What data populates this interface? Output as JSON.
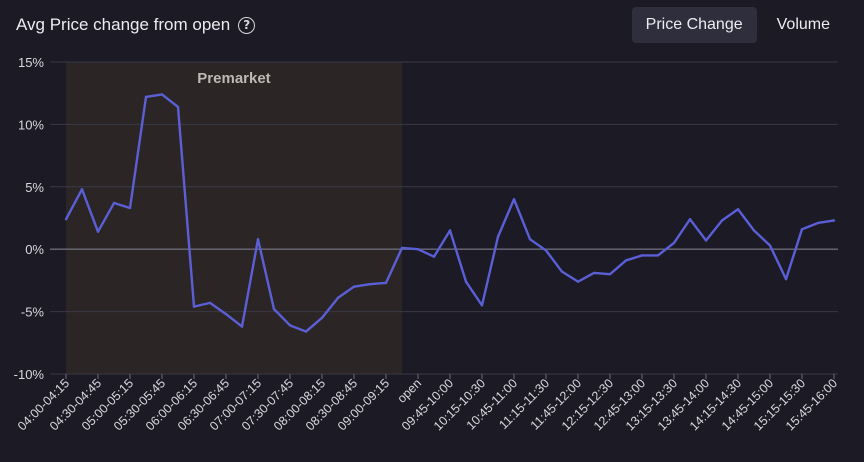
{
  "header": {
    "title": "Avg Price change from open",
    "help_icon": "question-circle-icon"
  },
  "tabs": [
    {
      "label": "Price Change",
      "active": true
    },
    {
      "label": "Volume",
      "active": false
    }
  ],
  "colors": {
    "line": "#5b5fd6",
    "premarket_bg": "#2b2625",
    "grid": "#3a3946",
    "zero_line": "#6b6a78",
    "background": "#1b1a25"
  },
  "chart_data": {
    "type": "line",
    "title": "Avg Price change from open",
    "ylim": [
      -10,
      15
    ],
    "yticks": [
      15,
      10,
      5,
      0,
      -5,
      -10
    ],
    "ytick_labels": [
      "15%",
      "10%",
      "5%",
      "0%",
      "-5%",
      "-10%"
    ],
    "shaded_region": {
      "label": "Premarket",
      "from_index": 0,
      "to_index": 21
    },
    "categories": [
      "04:00",
      "04:15",
      "04:30",
      "04:45",
      "05:00",
      "05:15",
      "05:30",
      "05:45",
      "06:00",
      "06:15",
      "06:30",
      "06:45",
      "07:00",
      "07:15",
      "07:30",
      "07:45",
      "08:00",
      "08:15",
      "08:30",
      "08:45",
      "09:00",
      "09:15",
      "open",
      "09:45",
      "10:00",
      "10:15",
      "10:30",
      "10:45",
      "11:00",
      "11:15",
      "11:30",
      "11:45",
      "12:00",
      "12:15",
      "12:30",
      "12:45",
      "13:00",
      "13:15",
      "13:30",
      "13:45",
      "14:00",
      "14:15",
      "14:30",
      "14:45",
      "15:00",
      "15:15",
      "15:30",
      "15:45",
      "16:00"
    ],
    "tick_labels": [
      "04:00-04:15",
      "04:30-04:45",
      "05:00-05:15",
      "05:30-05:45",
      "06:00-06:15",
      "06:30-06:45",
      "07:00-07:15",
      "07:30-07:45",
      "08:00-08:15",
      "08:30-08:45",
      "09:00-09:15",
      "open",
      "09:45-10:00",
      "10:15-10:30",
      "10:45-11:00",
      "11:15-11:30",
      "11:45-12:00",
      "12:15-12:30",
      "12:45-13:00",
      "13:15-13:30",
      "13:45-14:00",
      "14:15-14:30",
      "14:45-15:00",
      "15:15-15:30",
      "15:45-16:00"
    ],
    "series": [
      {
        "values": [
          2.4,
          4.8,
          1.4,
          3.7,
          3.3,
          12.2,
          12.4,
          11.4,
          -4.6,
          -4.3,
          -5.2,
          -6.2,
          0.8,
          -4.8,
          -6.1,
          -6.6,
          -5.5,
          -3.9,
          -3.0,
          -2.8,
          -2.7,
          0.1,
          0.0,
          -0.6,
          1.5,
          -2.6,
          -4.5,
          1.0,
          4.0,
          0.8,
          -0.1,
          -1.8,
          -2.6,
          -1.9,
          -2.0,
          -0.9,
          -0.5,
          -0.5,
          0.5,
          2.4,
          0.7,
          2.3,
          3.2,
          1.5,
          0.3,
          -2.4,
          1.6,
          2.1,
          2.3
        ]
      }
    ]
  }
}
